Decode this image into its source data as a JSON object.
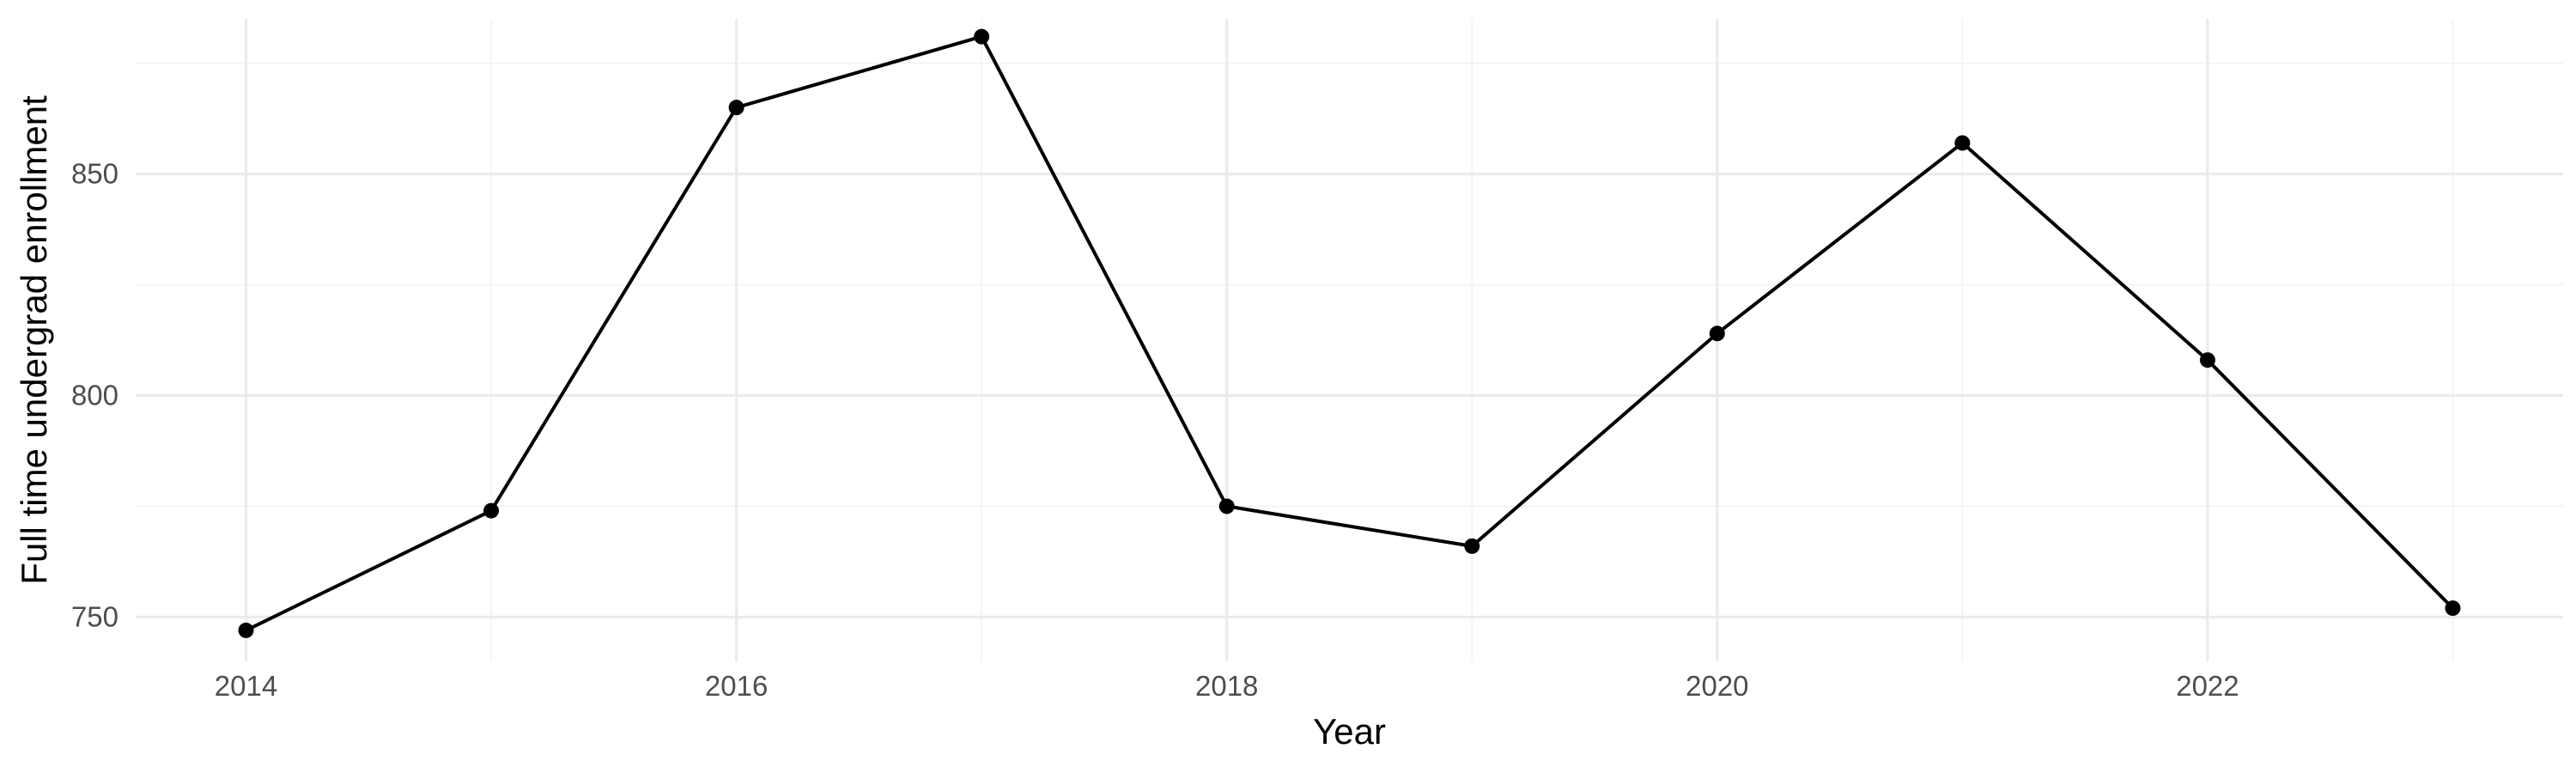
{
  "chart_data": {
    "type": "line",
    "title": "",
    "xlabel": "Year",
    "ylabel": "Full time undergrad enrollment",
    "x": [
      2014,
      2015,
      2016,
      2017,
      2018,
      2019,
      2020,
      2021,
      2022,
      2023
    ],
    "series": [
      {
        "values": [
          747,
          774,
          865,
          881,
          775,
          766,
          814,
          857,
          808,
          752
        ],
        "color": "#000000",
        "markers": true
      }
    ],
    "xlim": [
      2013.55,
      2023.45
    ],
    "ylim": [
      740,
      885
    ],
    "x_ticks": [
      2014,
      2016,
      2018,
      2020,
      2022
    ],
    "x_tick_labels": [
      "2014",
      "2016",
      "2018",
      "2020",
      "2022"
    ],
    "y_ticks": [
      750,
      800,
      850
    ],
    "y_tick_labels": [
      "750",
      "800",
      "850"
    ],
    "grid": true,
    "legend": "none"
  }
}
